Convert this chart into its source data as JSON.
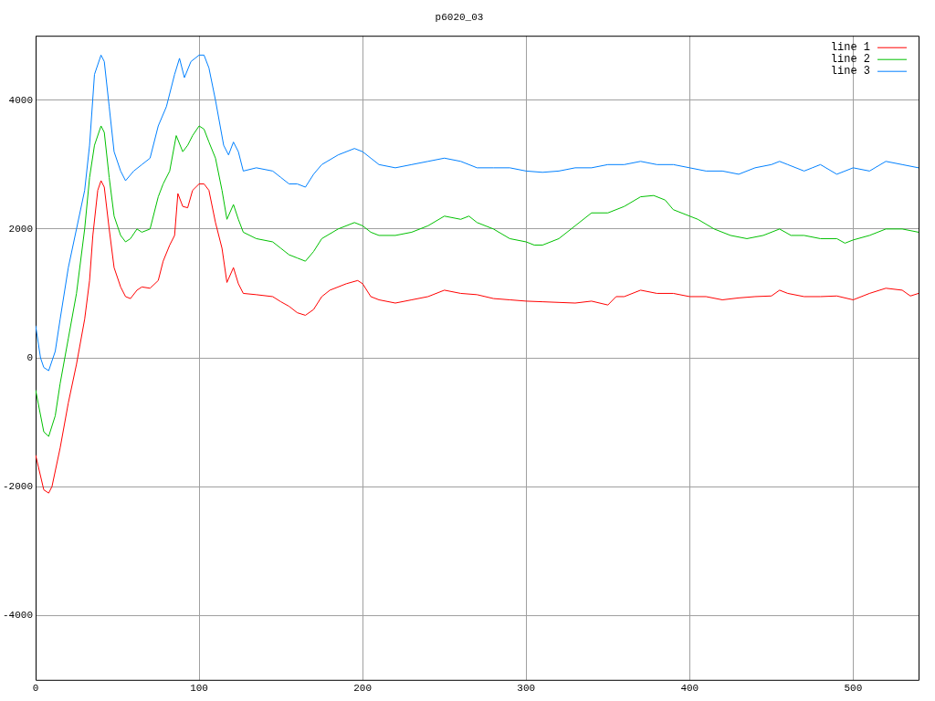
{
  "chart_data": {
    "type": "line",
    "title": "p6020_03",
    "xlim": [
      0,
      540
    ],
    "xticks": [
      0,
      100,
      200,
      300,
      400,
      500
    ],
    "ylim": [
      -5000,
      5000
    ],
    "yticks": [
      -4000,
      -2000,
      0,
      2000,
      4000
    ],
    "grid": true,
    "legend": "top right",
    "marker": "none",
    "line_style": "solid",
    "series": [
      {
        "name": "line 1",
        "color": "#ff0000",
        "x": [
          0,
          5,
          8,
          10,
          15,
          20,
          25,
          30,
          33,
          35,
          38,
          40,
          42,
          45,
          48,
          52,
          55,
          58,
          62,
          65,
          70,
          75,
          78,
          82,
          85,
          87,
          90,
          93,
          96,
          100,
          103,
          106,
          110,
          114,
          117,
          121,
          124,
          127,
          135,
          145,
          150,
          155,
          160,
          165,
          170,
          175,
          180,
          190,
          197,
          200,
          205,
          210,
          220,
          230,
          240,
          250,
          260,
          270,
          280,
          290,
          300,
          310,
          320,
          330,
          340,
          350,
          355,
          360,
          370,
          380,
          390,
          400,
          410,
          420,
          430,
          440,
          450,
          455,
          460,
          470,
          480,
          490,
          500,
          510,
          520,
          530,
          535,
          540
        ],
        "values": [
          -1510,
          -2050,
          -2100,
          -2000,
          -1400,
          -700,
          -100,
          600,
          1200,
          1900,
          2600,
          2750,
          2650,
          2000,
          1400,
          1100,
          950,
          920,
          1050,
          1100,
          1080,
          1200,
          1500,
          1750,
          1900,
          2550,
          2350,
          2330,
          2600,
          2700,
          2700,
          2600,
          2100,
          1700,
          1170,
          1400,
          1150,
          1000,
          980,
          950,
          870,
          800,
          700,
          660,
          750,
          950,
          1050,
          1150,
          1200,
          1150,
          950,
          900,
          850,
          900,
          950,
          1050,
          1000,
          980,
          920,
          900,
          880,
          870,
          860,
          850,
          880,
          820,
          950,
          950,
          1050,
          1000,
          1000,
          950,
          950,
          900,
          930,
          950,
          960,
          1050,
          1000,
          950,
          950,
          960,
          900,
          1000,
          1080,
          1050,
          960,
          1000
        ]
      },
      {
        "name": "line 2",
        "color": "#00c000",
        "x": [
          0,
          5,
          8,
          12,
          15,
          20,
          25,
          30,
          33,
          36,
          40,
          42,
          45,
          48,
          52,
          55,
          58,
          62,
          65,
          70,
          75,
          78,
          82,
          86,
          90,
          93,
          96,
          100,
          103,
          106,
          110,
          114,
          117,
          121,
          124,
          127,
          135,
          145,
          150,
          155,
          160,
          165,
          170,
          175,
          185,
          195,
          200,
          205,
          210,
          220,
          230,
          240,
          250,
          260,
          265,
          270,
          280,
          290,
          300,
          305,
          310,
          320,
          330,
          340,
          350,
          360,
          370,
          378,
          385,
          390,
          400,
          405,
          415,
          425,
          435,
          445,
          455,
          462,
          470,
          480,
          490,
          495,
          500,
          510,
          520,
          530,
          540
        ],
        "values": [
          -500,
          -1150,
          -1220,
          -900,
          -400,
          300,
          1000,
          2000,
          2800,
          3300,
          3600,
          3500,
          2800,
          2200,
          1900,
          1800,
          1850,
          2000,
          1950,
          2000,
          2500,
          2700,
          2900,
          3450,
          3200,
          3300,
          3450,
          3600,
          3550,
          3350,
          3100,
          2600,
          2150,
          2380,
          2150,
          1950,
          1850,
          1800,
          1700,
          1600,
          1550,
          1500,
          1650,
          1850,
          2000,
          2100,
          2050,
          1950,
          1900,
          1900,
          1950,
          2050,
          2200,
          2150,
          2200,
          2100,
          2000,
          1850,
          1800,
          1750,
          1750,
          1850,
          2050,
          2250,
          2250,
          2350,
          2500,
          2520,
          2450,
          2300,
          2200,
          2150,
          2000,
          1900,
          1850,
          1900,
          2000,
          1900,
          1900,
          1850,
          1850,
          1780,
          1830,
          1900,
          2000,
          2000,
          1950
        ]
      },
      {
        "name": "line 3",
        "color": "#0080ff",
        "x": [
          0,
          3,
          5,
          8,
          12,
          15,
          20,
          25,
          30,
          33,
          36,
          40,
          42,
          45,
          48,
          52,
          55,
          60,
          65,
          70,
          75,
          80,
          85,
          88,
          91,
          95,
          100,
          103,
          106,
          110,
          115,
          118,
          121,
          124,
          127,
          135,
          145,
          150,
          155,
          160,
          165,
          170,
          175,
          185,
          195,
          200,
          205,
          210,
          220,
          230,
          240,
          250,
          260,
          270,
          280,
          290,
          300,
          310,
          320,
          330,
          340,
          350,
          360,
          370,
          380,
          390,
          400,
          410,
          420,
          430,
          440,
          450,
          455,
          460,
          470,
          475,
          480,
          490,
          500,
          510,
          520,
          530,
          540
        ],
        "values": [
          500,
          0,
          -150,
          -200,
          100,
          600,
          1400,
          2000,
          2600,
          3300,
          4400,
          4700,
          4600,
          3900,
          3200,
          2900,
          2750,
          2900,
          3000,
          3100,
          3600,
          3900,
          4400,
          4650,
          4350,
          4600,
          4700,
          4700,
          4500,
          4000,
          3300,
          3150,
          3350,
          3200,
          2900,
          2950,
          2900,
          2800,
          2700,
          2700,
          2650,
          2850,
          3000,
          3150,
          3250,
          3200,
          3100,
          3000,
          2950,
          3000,
          3050,
          3100,
          3050,
          2950,
          2950,
          2950,
          2900,
          2880,
          2900,
          2950,
          2950,
          3000,
          3000,
          3050,
          3000,
          3000,
          2950,
          2900,
          2900,
          2850,
          2950,
          3000,
          3050,
          3000,
          2900,
          2950,
          3000,
          2850,
          2950,
          2900,
          3050,
          3000,
          2950
        ]
      }
    ]
  }
}
